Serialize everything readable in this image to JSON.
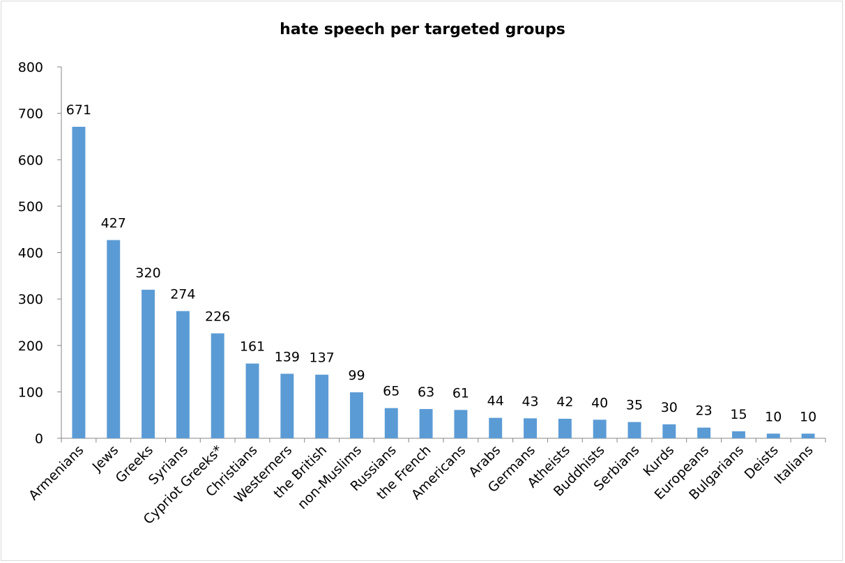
{
  "chart_data": {
    "type": "bar",
    "title": "hate speech per targeted groups",
    "xlabel": "",
    "ylabel": "",
    "ylim": [
      0,
      800
    ],
    "yticks": [
      0,
      100,
      200,
      300,
      400,
      500,
      600,
      700,
      800
    ],
    "grid": false,
    "legend": "none",
    "bar_color": "#5b9bd5",
    "categories": [
      "Armenians",
      "Jews",
      "Greeks",
      "Syrians",
      "Cypriot Greeks*",
      "Christians",
      "Westerners",
      "the British",
      "non-Muslims",
      "Russians",
      "the French",
      "Americans",
      "Arabs",
      "Germans",
      "Atheists",
      "Buddhists",
      "Serbians",
      "Kurds",
      "Europeans",
      "Bulgarians",
      "Deists",
      "Italians"
    ],
    "values": [
      671,
      427,
      320,
      274,
      226,
      161,
      139,
      137,
      99,
      65,
      63,
      61,
      44,
      43,
      42,
      40,
      35,
      30,
      23,
      15,
      10,
      10
    ]
  }
}
